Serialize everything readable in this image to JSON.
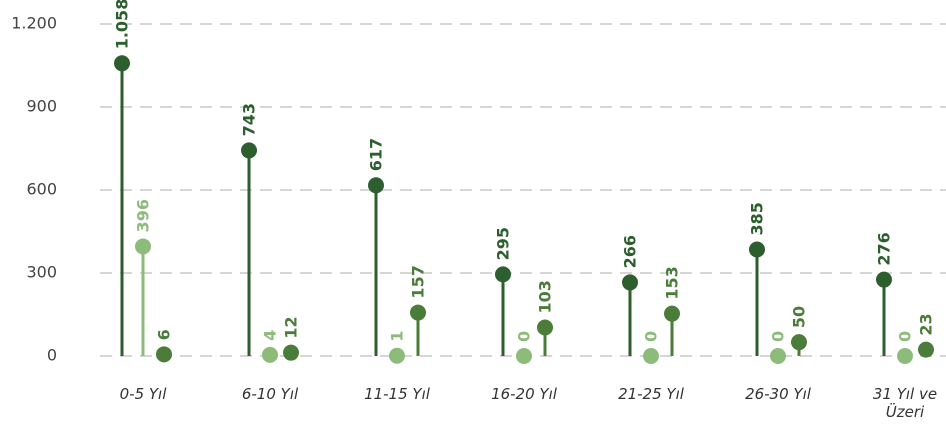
{
  "chart_data": {
    "type": "lollipop",
    "categories": [
      "0-5 Yıl",
      "6-10 Yıl",
      "11-15 Yıl",
      "16-20 Yıl",
      "21-25 Yıl",
      "26-30 Yıl",
      "31 Yıl ve Üzeri"
    ],
    "series": [
      {
        "color": "#2d5e2e",
        "values": [
          1058,
          743,
          617,
          295,
          266,
          385,
          276
        ],
        "value_labels": [
          "1.058",
          "743",
          "617",
          "295",
          "266",
          "385",
          "276"
        ]
      },
      {
        "color": "#8dbb7a",
        "values": [
          396,
          4,
          1,
          0,
          0,
          0,
          0
        ]
      },
      {
        "color": "#4a7c3a",
        "values": [
          6,
          12,
          157,
          103,
          153,
          50,
          23
        ]
      }
    ],
    "ylim": [
      0,
      1200
    ],
    "yticks": [
      0,
      300,
      600,
      900,
      {
        "value": 1200,
        "label": "1.200"
      }
    ],
    "grid": true
  }
}
